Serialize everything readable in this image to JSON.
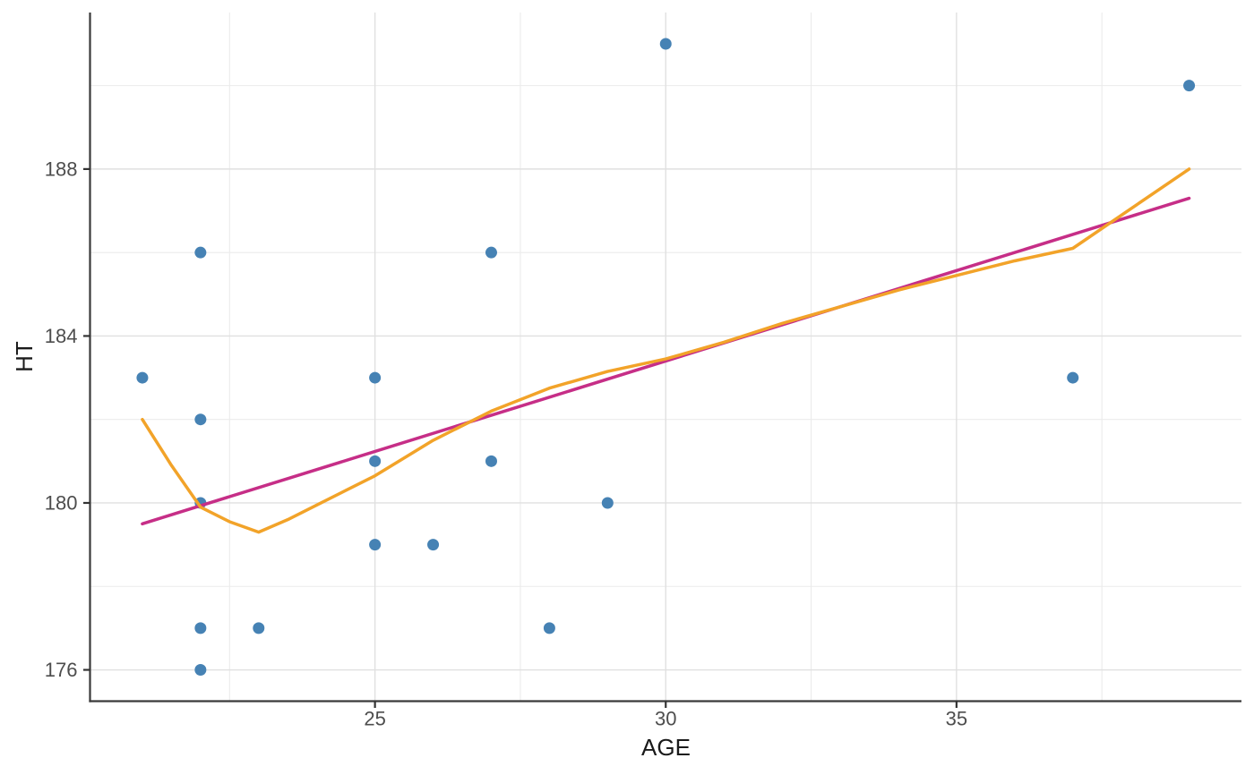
{
  "figure": {
    "background": "#ffffff"
  },
  "chart_data": {
    "type": "scatter",
    "title": "",
    "xlabel": "AGE",
    "ylabel": "HT",
    "legend": "none",
    "grid": "major+minor",
    "x_axis": {
      "lim": [
        20.1,
        39.9
      ],
      "ticks_major": [
        25,
        30,
        35
      ],
      "ticks_minor": [
        22.5,
        27.5,
        32.5,
        37.5
      ]
    },
    "y_axis": {
      "lim": [
        175.25,
        191.75
      ],
      "ticks_major": [
        176,
        180,
        184,
        188
      ],
      "ticks_minor": [
        178,
        182,
        186,
        190
      ]
    },
    "series": [
      {
        "name": "observations",
        "kind": "points",
        "color": "#4682B4",
        "marker_radius": 6.5,
        "points": [
          [
            21,
            183
          ],
          [
            22,
            186
          ],
          [
            22,
            182
          ],
          [
            22,
            180
          ],
          [
            22,
            177
          ],
          [
            22,
            176
          ],
          [
            23,
            177
          ],
          [
            25,
            183
          ],
          [
            25,
            181
          ],
          [
            25,
            179
          ],
          [
            26,
            179
          ],
          [
            27,
            186
          ],
          [
            27,
            181
          ],
          [
            28,
            177
          ],
          [
            29,
            180
          ],
          [
            30,
            191
          ],
          [
            37,
            183
          ],
          [
            39,
            190
          ]
        ]
      },
      {
        "name": "linear-fit",
        "kind": "line",
        "color": "#C62E87",
        "width": 3.5,
        "points": [
          [
            21,
            179.5
          ],
          [
            39,
            187.3
          ]
        ]
      },
      {
        "name": "loess-smooth",
        "kind": "line",
        "color": "#F2A329",
        "width": 3.5,
        "points": [
          [
            21,
            182.0
          ],
          [
            21.5,
            180.9
          ],
          [
            22,
            179.9
          ],
          [
            22.5,
            179.55
          ],
          [
            23,
            179.3
          ],
          [
            23.5,
            179.6
          ],
          [
            24,
            179.95
          ],
          [
            24.5,
            180.3
          ],
          [
            25,
            180.65
          ],
          [
            26,
            181.5
          ],
          [
            27,
            182.2
          ],
          [
            28,
            182.75
          ],
          [
            29,
            183.15
          ],
          [
            30,
            183.45
          ],
          [
            31,
            183.85
          ],
          [
            32,
            184.3
          ],
          [
            33,
            184.7
          ],
          [
            34,
            185.1
          ],
          [
            35,
            185.45
          ],
          [
            36,
            185.8
          ],
          [
            37,
            186.1
          ],
          [
            38,
            187.05
          ],
          [
            39,
            188.0
          ]
        ]
      }
    ],
    "style": {
      "axis_line_color": "#3A3A3A",
      "tick_mark_color": "#333333",
      "tick_label_color": "#4D4D4D",
      "axis_title_color": "#1A1A1A",
      "grid_major_color": "#E0E0E0",
      "grid_minor_color": "#EBEBEB",
      "point_color": "#4682B4",
      "linear_fit_color": "#C62E87",
      "loess_color": "#F2A329"
    }
  }
}
